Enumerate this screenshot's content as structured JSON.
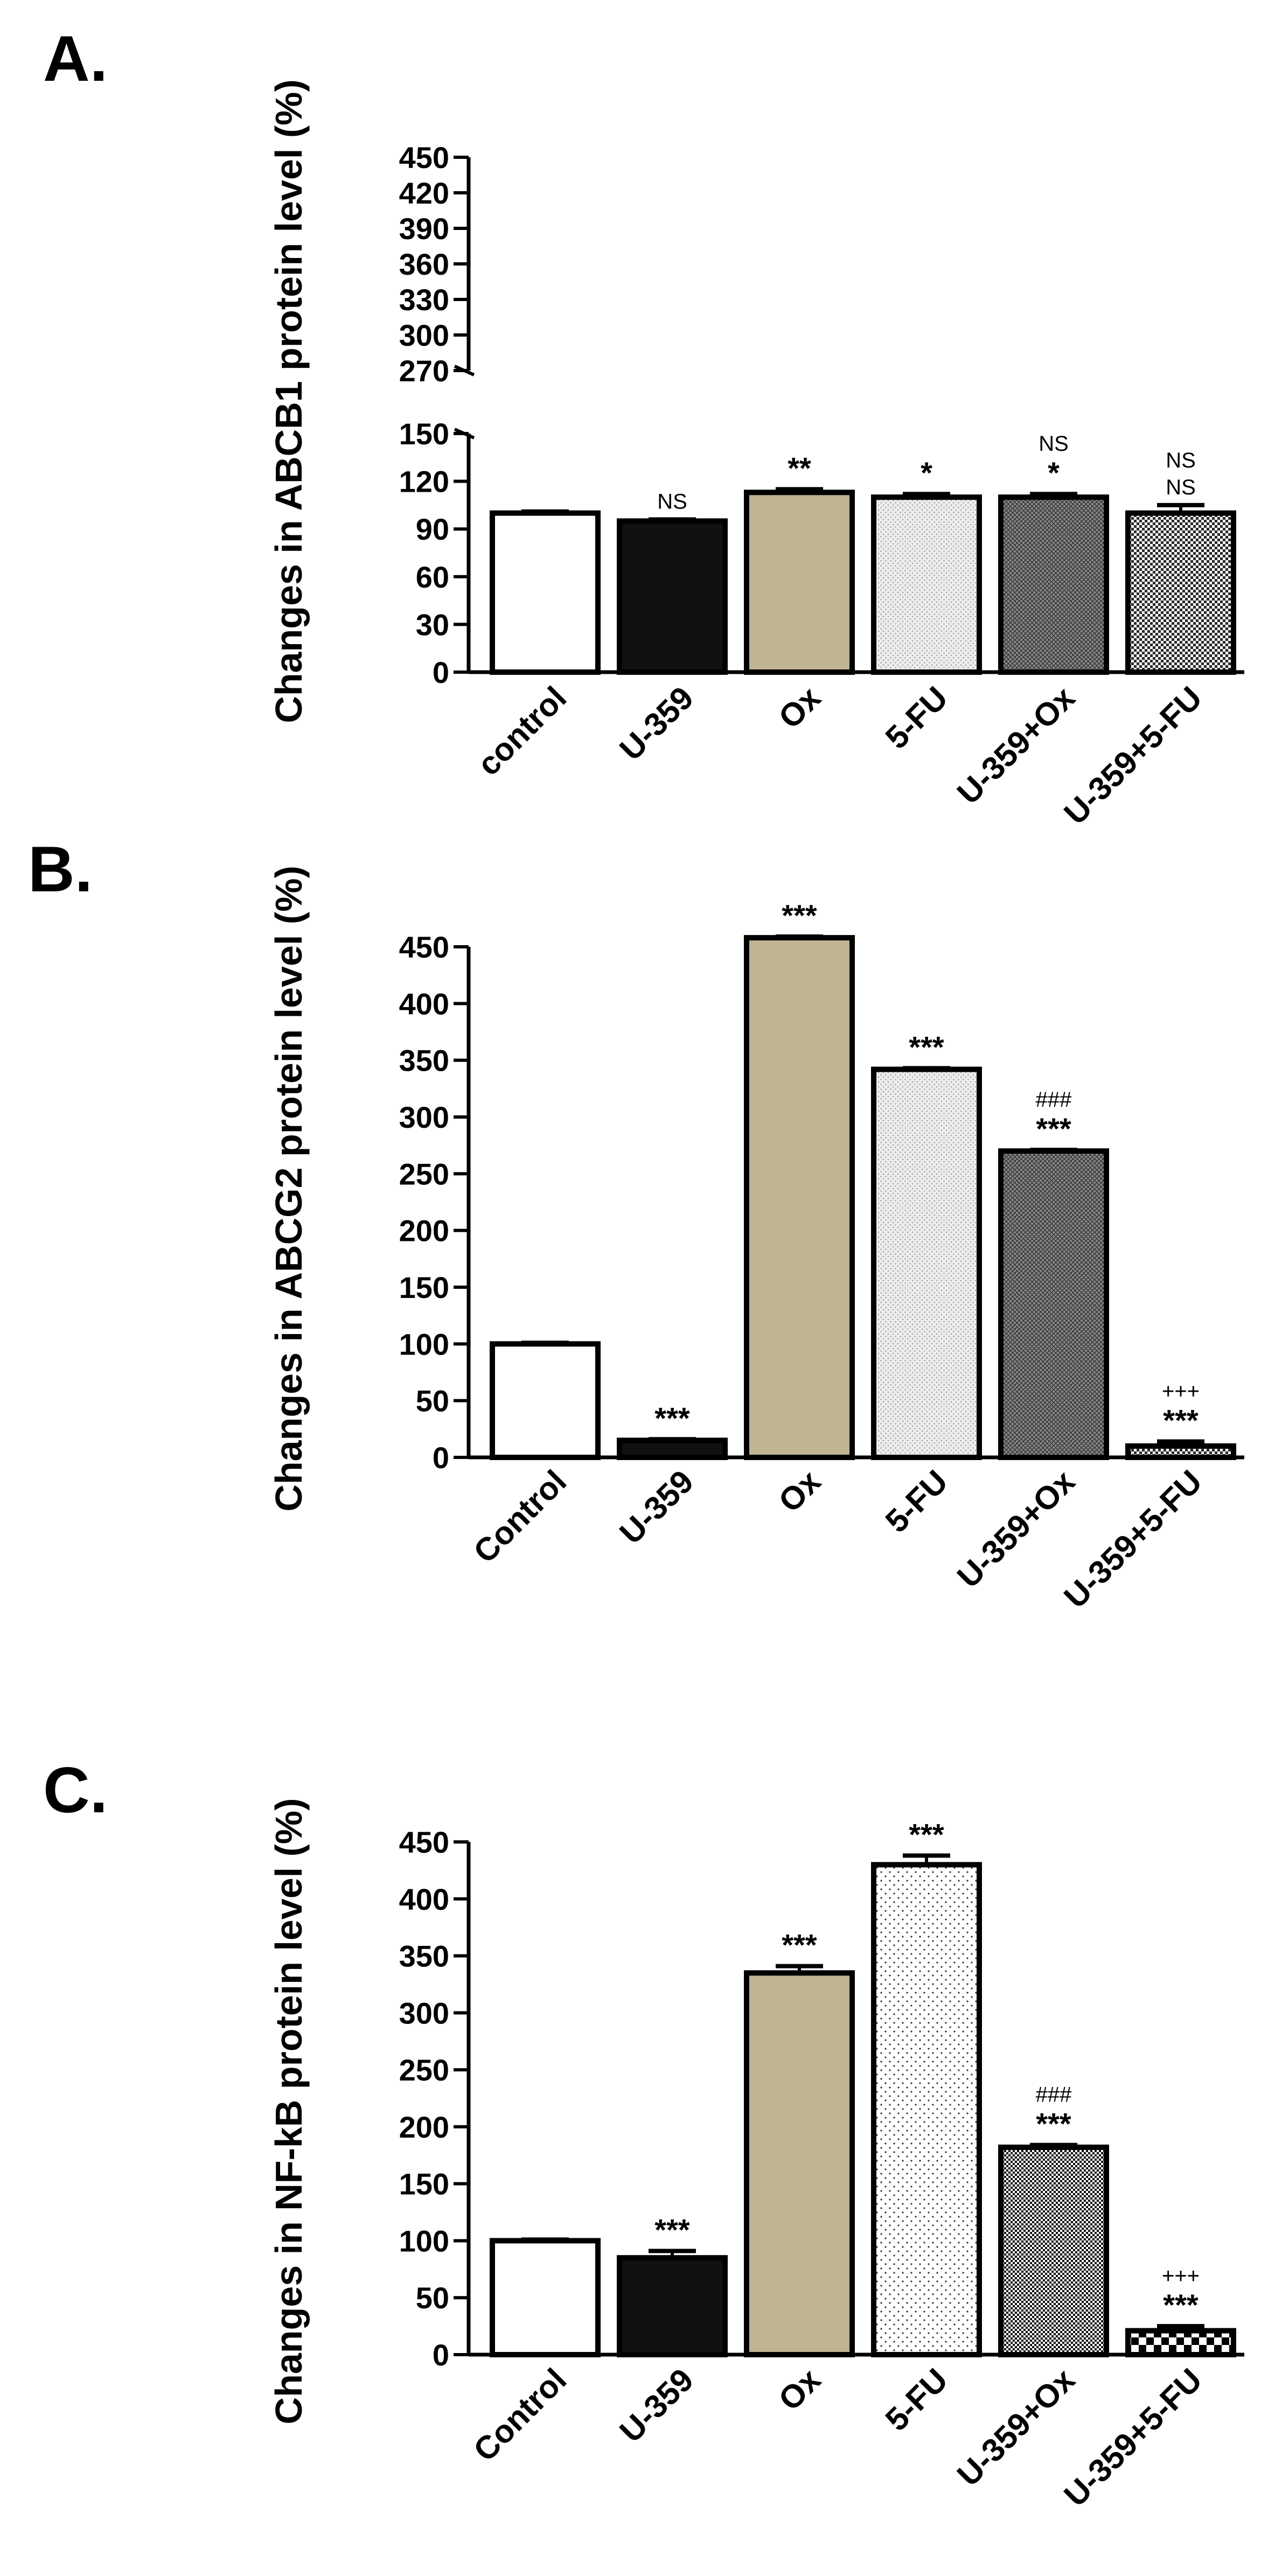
{
  "chart_data": [
    {
      "type": "bar",
      "panel_label": "A.",
      "ylabel": "Changes in ABCB1 protein level (%)",
      "categories": [
        "control",
        "U-359",
        "Ox",
        "5-FU",
        "U-359+Ox",
        "U-359+5-FU"
      ],
      "values": [
        100,
        95,
        113,
        110,
        110,
        100
      ],
      "errors": [
        1,
        1,
        2,
        2,
        2,
        5
      ],
      "ylim": [
        0,
        450
      ],
      "axis_break": [
        150,
        260
      ],
      "yticks_lower": [
        0,
        30,
        60,
        90,
        120,
        150
      ],
      "yticks_upper": [
        270,
        300,
        330,
        360,
        390,
        420,
        450
      ],
      "annotations": [
        [],
        [
          "NS"
        ],
        [
          "**"
        ],
        [
          "*"
        ],
        [
          "NS",
          "*"
        ],
        [
          "NS",
          "NS"
        ]
      ],
      "fills": [
        "white",
        "black",
        "tan",
        "lightdots",
        "darkcross",
        "checker"
      ]
    },
    {
      "type": "bar",
      "panel_label": "B.",
      "ylabel": "Changes in ABCG2 protein level (%)",
      "categories": [
        "Control",
        "U-359",
        "Ox",
        "5-FU",
        "U-359+Ox",
        "U-359+5-FU"
      ],
      "values": [
        100,
        15,
        458,
        342,
        270,
        10
      ],
      "errors": [
        1,
        1,
        1,
        1,
        1,
        4
      ],
      "ylim": [
        0,
        450
      ],
      "yticks": [
        0,
        50,
        100,
        150,
        200,
        250,
        300,
        350,
        400,
        450
      ],
      "annotations": [
        [],
        [
          "***"
        ],
        [
          "***"
        ],
        [
          "***"
        ],
        [
          "###",
          "***"
        ],
        [
          "+++",
          "***"
        ]
      ],
      "fills": [
        "white",
        "black",
        "tan",
        "lightdots",
        "darkcross",
        "checker"
      ]
    },
    {
      "type": "bar",
      "panel_label": "C.",
      "ylabel": "Changes in NF-kB protein level (%)",
      "categories": [
        "Control",
        "U-359",
        "Ox",
        "5-FU",
        "U-359+Ox",
        "U-359+5-FU"
      ],
      "values": [
        100,
        85,
        335,
        430,
        182,
        21
      ],
      "errors": [
        1,
        6,
        6,
        8,
        2,
        4
      ],
      "ylim": [
        0,
        450
      ],
      "yticks": [
        0,
        50,
        100,
        150,
        200,
        250,
        300,
        350,
        400,
        450
      ],
      "annotations": [
        [],
        [
          "***"
        ],
        [
          "***"
        ],
        [
          "***"
        ],
        [
          "###",
          "***"
        ],
        [
          "+++",
          "***"
        ]
      ],
      "fills": [
        "white",
        "black",
        "tan",
        "sparsedots",
        "densecheck",
        "bigchecker"
      ]
    }
  ]
}
